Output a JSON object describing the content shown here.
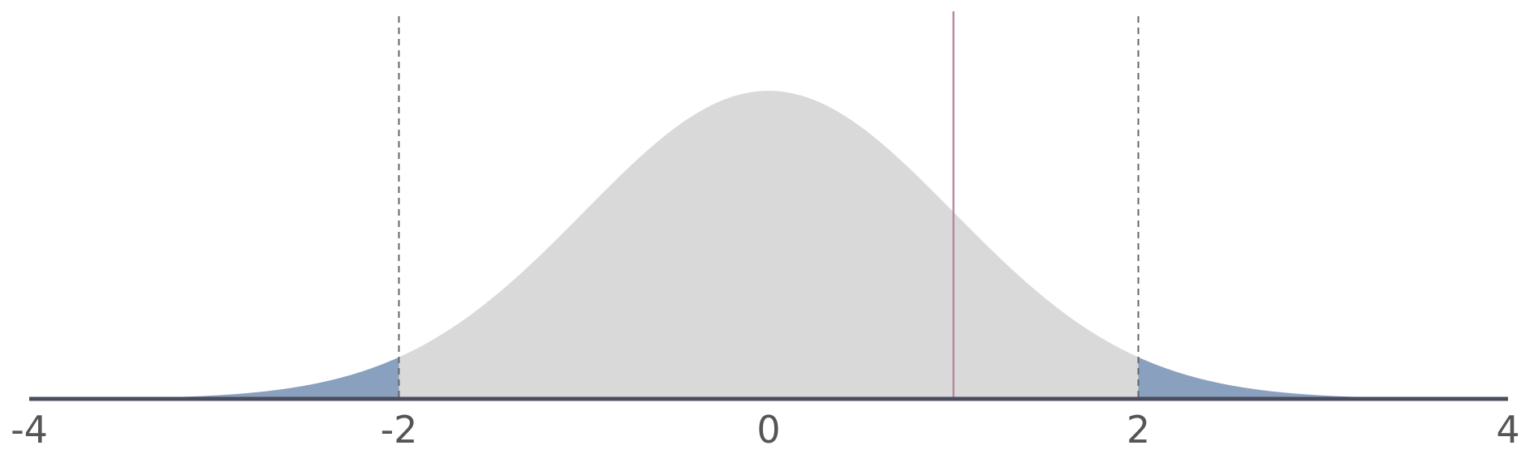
{
  "chart_data": {
    "type": "area",
    "distribution": "standard normal",
    "xlim": [
      -4,
      4
    ],
    "x_ticks": [
      -4,
      -2,
      0,
      2,
      4
    ],
    "x_tick_labels": [
      "-4",
      "-2",
      "0",
      "2",
      "4"
    ],
    "critical_values": [
      -2,
      2
    ],
    "observed_value": 1,
    "shaded_tails": {
      "left_below": -2,
      "right_above": 2
    },
    "grid": false,
    "legend": "none",
    "colors": {
      "body_fill": "#d9d9d9",
      "tail_fill": "#8aa0bf",
      "axis": "#4a4d5e",
      "critical_line": "#666666",
      "observed_line": "#b88aa6",
      "tick_label": "#555558"
    }
  }
}
